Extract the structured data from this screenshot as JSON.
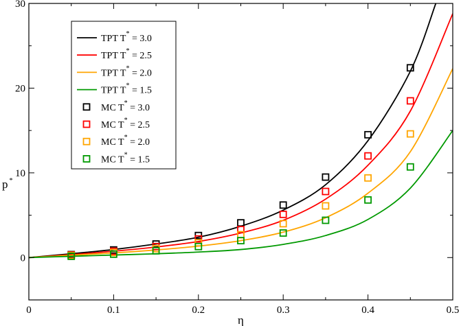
{
  "chart_data": {
    "type": "scatter",
    "xlabel": "η",
    "ylabel_main": "p",
    "ylabel_sup": "*",
    "xlim": [
      0,
      0.5
    ],
    "ylim": [
      -5,
      30
    ],
    "xticks": [
      0,
      0.1,
      0.2,
      0.3,
      0.4,
      0.5
    ],
    "xtick_labels": [
      "0",
      "0.1",
      "0.2",
      "0.3",
      "0.4",
      "0.5"
    ],
    "yticks": [
      0,
      10,
      20,
      30
    ],
    "ytick_labels": [
      "0",
      "10",
      "20",
      "30"
    ],
    "grid": false,
    "legend_position": "top-left",
    "lines": [
      {
        "name_pre": "TPT  T",
        "name_sup": "*",
        "name_post": " = 3.0",
        "color": "#000000",
        "x": [
          0,
          0.05,
          0.1,
          0.15,
          0.2,
          0.25,
          0.3,
          0.35,
          0.4,
          0.45,
          0.48
        ],
        "y": [
          0,
          0.45,
          0.95,
          1.6,
          2.4,
          3.7,
          5.6,
          8.6,
          13.8,
          22.0,
          30.0
        ]
      },
      {
        "name_pre": "TPT T",
        "name_sup": "*",
        "name_post": " = 2.5",
        "color": "#ff0000",
        "x": [
          0,
          0.05,
          0.1,
          0.15,
          0.2,
          0.25,
          0.3,
          0.35,
          0.4,
          0.45,
          0.5
        ],
        "y": [
          0,
          0.35,
          0.75,
          1.25,
          1.9,
          2.9,
          4.4,
          6.9,
          10.9,
          17.3,
          28.8
        ]
      },
      {
        "name_pre": "TPT T",
        "name_sup": "*",
        "name_post": " = 2.0",
        "color": "#ffa500",
        "x": [
          0,
          0.05,
          0.1,
          0.15,
          0.2,
          0.25,
          0.3,
          0.35,
          0.4,
          0.45,
          0.5
        ],
        "y": [
          0,
          0.28,
          0.55,
          0.9,
          1.35,
          2.0,
          3.0,
          4.7,
          7.6,
          12.5,
          22.3
        ]
      },
      {
        "name_pre": "TPT T",
        "name_sup": "*",
        "name_post": " = 1.5",
        "color": "#009900",
        "x": [
          0,
          0.05,
          0.1,
          0.15,
          0.2,
          0.25,
          0.3,
          0.35,
          0.4,
          0.45,
          0.5
        ],
        "y": [
          0,
          0.15,
          0.3,
          0.45,
          0.65,
          0.95,
          1.55,
          2.6,
          4.5,
          8.2,
          15.0
        ]
      }
    ],
    "markers": [
      {
        "name_pre": "MC T",
        "name_sup": "*",
        "name_post": " = 3.0",
        "color": "#000000",
        "x": [
          0.05,
          0.1,
          0.15,
          0.2,
          0.25,
          0.3,
          0.35,
          0.4,
          0.45
        ],
        "y": [
          0.35,
          0.9,
          1.6,
          2.6,
          4.1,
          6.2,
          9.5,
          14.5,
          22.4
        ]
      },
      {
        "name_pre": "MC T",
        "name_sup": "*",
        "name_post": " = 2.5",
        "color": "#ff0000",
        "x": [
          0.05,
          0.1,
          0.15,
          0.2,
          0.25,
          0.3,
          0.35,
          0.4,
          0.45
        ],
        "y": [
          0.3,
          0.75,
          1.3,
          2.2,
          3.3,
          5.1,
          7.8,
          12.0,
          18.5
        ]
      },
      {
        "name_pre": "MC T",
        "name_sup": "*",
        "name_post": " = 2.0",
        "color": "#ffa500",
        "x": [
          0.05,
          0.1,
          0.15,
          0.2,
          0.25,
          0.3,
          0.35,
          0.4,
          0.45
        ],
        "y": [
          0.25,
          0.6,
          1.05,
          1.75,
          2.7,
          4.0,
          6.1,
          9.4,
          14.6
        ]
      },
      {
        "name_pre": "MC T",
        "name_sup": "*",
        "name_post": " = 1.5",
        "color": "#009900",
        "x": [
          0.05,
          0.1,
          0.15,
          0.2,
          0.25,
          0.3,
          0.35,
          0.4,
          0.45
        ],
        "y": [
          0.15,
          0.4,
          0.8,
          1.3,
          2.0,
          2.9,
          4.4,
          6.8,
          10.7
        ]
      }
    ]
  }
}
